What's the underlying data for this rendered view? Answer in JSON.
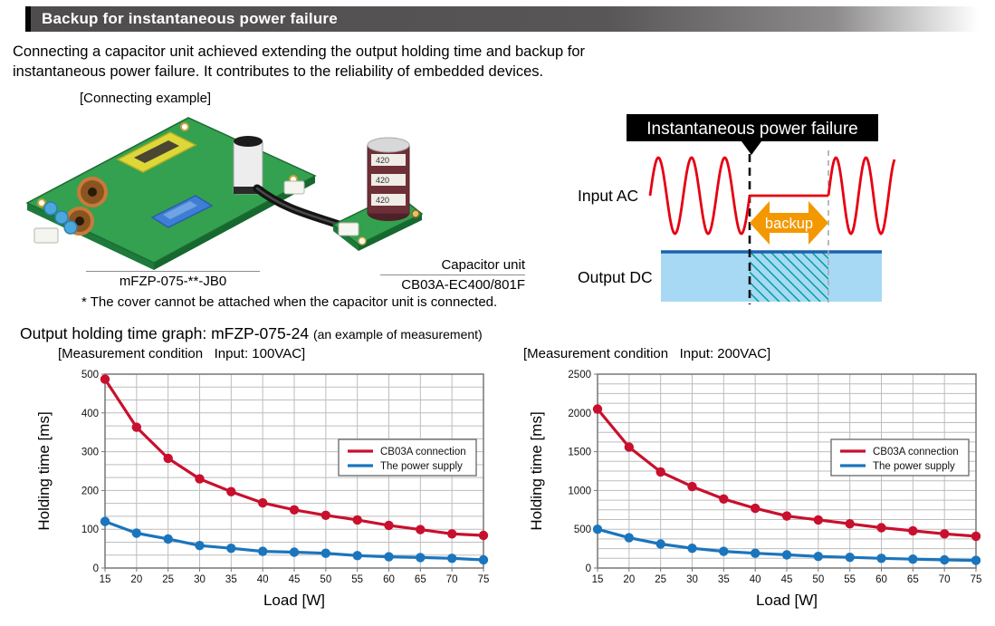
{
  "header": {
    "title": "Backup for instantaneous power failure",
    "bar_color": "#585656",
    "accent_color": "#060606"
  },
  "intro": {
    "line1": "Connecting a capacitor unit achieved extending the output holding time and backup for",
    "line2": "instantaneous power failure. It contributes to the reliability of embedded devices."
  },
  "connecting": {
    "caption": "[Connecting example]",
    "power_supply_model": "mFZP-075-**-JB0",
    "capacitor_unit_label": "Capacitor unit",
    "capacitor_unit_model": "CB03A-EC400/801F",
    "capacitor_marking": "420",
    "note": "* The cover cannot be attached when the capacitor unit is connected."
  },
  "diagram": {
    "title": "Instantaneous power failure",
    "input_label": "Input AC",
    "output_label": "Output DC",
    "backup_label": "backup",
    "colors": {
      "wave_red": "#e60012",
      "arrow_orange": "#f39800",
      "band_blue": "#a7d9f5",
      "band_border": "#1b62ab",
      "hatch_teal": "#00a29a"
    }
  },
  "graphs": {
    "section_title": "Output holding time graph: mFZP-075-24",
    "section_subtitle": "(an example of measurement)"
  },
  "chart_data": [
    {
      "type": "line",
      "title": "[Measurement condition   Input: 100VAC]",
      "xlabel": "Load [W]",
      "ylabel": "Holding time [ms]",
      "x": [
        15,
        20,
        25,
        30,
        35,
        40,
        45,
        50,
        55,
        60,
        65,
        70,
        75
      ],
      "ylim": [
        0,
        500
      ],
      "ytick_step": 100,
      "y_minor_divisions": 3,
      "grid": true,
      "legend_position": "inside-right",
      "series": [
        {
          "name": "CB03A connection",
          "color": "#c8102e",
          "values": [
            487,
            363,
            283,
            230,
            197,
            168,
            150,
            136,
            124,
            110,
            99,
            88,
            84
          ]
        },
        {
          "name": "The power supply",
          "color": "#1b75bc",
          "values": [
            120,
            90,
            75,
            58,
            51,
            43,
            41,
            38,
            32,
            29,
            27,
            25,
            21
          ]
        }
      ]
    },
    {
      "type": "line",
      "title": "[Measurement condition   Input: 200VAC]",
      "xlabel": "Load [W]",
      "ylabel": "Holding time [ms]",
      "x": [
        15,
        20,
        25,
        30,
        35,
        40,
        45,
        50,
        55,
        60,
        65,
        70,
        75
      ],
      "ylim": [
        0,
        2500
      ],
      "ytick_step": 500,
      "y_minor_divisions": 4,
      "grid": true,
      "legend_position": "inside-right",
      "series": [
        {
          "name": "CB03A connection",
          "color": "#c8102e",
          "values": [
            2050,
            1560,
            1240,
            1050,
            890,
            770,
            670,
            620,
            570,
            520,
            480,
            440,
            410
          ]
        },
        {
          "name": "The power supply",
          "color": "#1b75bc",
          "values": [
            500,
            390,
            310,
            255,
            215,
            190,
            170,
            150,
            138,
            125,
            115,
            105,
            98
          ]
        }
      ]
    }
  ]
}
